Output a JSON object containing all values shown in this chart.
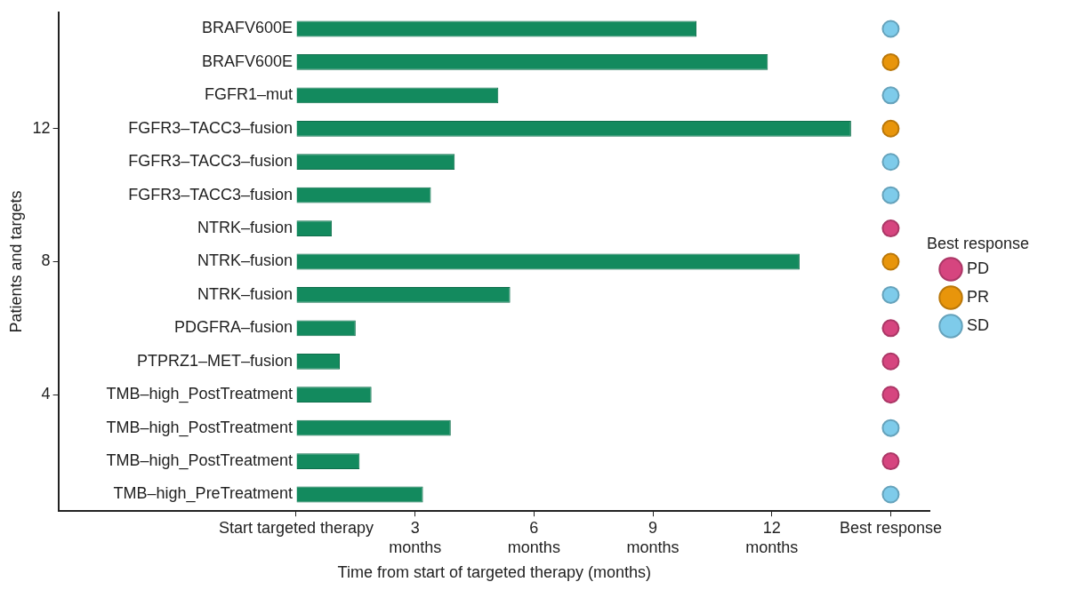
{
  "chart_data": {
    "type": "bar",
    "orientation": "horizontal",
    "xlabel": "Time from start of targeted therapy (months)",
    "y2label": "Patients and targets",
    "legend_title": "Best response",
    "legend": "right",
    "grid": false,
    "marker": "circle",
    "categories": [
      "BRAFV600E",
      "BRAFV600E",
      "FGFR1–mut",
      "FGFR3–TACC3–fusion",
      "FGFR3–TACC3–fusion",
      "FGFR3–TACC3–fusion",
      "NTRK–fusion",
      "NTRK–fusion",
      "NTRK–fusion",
      "PDGFRA–fusion",
      "PTPRZ1–MET–fusion",
      "TMB–high_PostTreatment",
      "TMB–high_PostTreatment",
      "TMB–high_PostTreatment",
      "TMB–high_PreTreatment"
    ],
    "xlim": [
      -6,
      16
    ],
    "xticks": [
      {
        "value": 0,
        "label": "Start targeted therapy"
      },
      {
        "value": 3,
        "label": "3\nmonths"
      },
      {
        "value": 6,
        "label": "6\nmonths"
      },
      {
        "value": 9,
        "label": "9\nmonths"
      },
      {
        "value": 12,
        "label": "12\nmonths"
      },
      {
        "value": 15,
        "label": "Best response"
      }
    ],
    "y2lim": [
      0.5,
      15.5
    ],
    "y2ticks": [
      4,
      8,
      12
    ],
    "series": [
      {
        "color": "#138a5e",
        "values": [
          10.1,
          11.9,
          5.1,
          14.0,
          4.0,
          3.4,
          0.9,
          12.7,
          5.4,
          1.5,
          1.1,
          1.9,
          3.9,
          1.6,
          3.2
        ]
      },
      {
        "type": "scatter",
        "name": "PD",
        "color": "#d6457f",
        "values": [
          null,
          null,
          null,
          null,
          null,
          null,
          15,
          null,
          null,
          15,
          15,
          15,
          null,
          15,
          null
        ]
      },
      {
        "type": "scatter",
        "name": "PR",
        "color": "#e8950b",
        "values": [
          null,
          15,
          null,
          15,
          null,
          null,
          null,
          15,
          null,
          null,
          null,
          null,
          null,
          null,
          null
        ]
      },
      {
        "type": "scatter",
        "name": "SD",
        "color": "#7ecbea",
        "values": [
          15,
          null,
          15,
          null,
          15,
          15,
          null,
          null,
          15,
          null,
          null,
          null,
          15,
          null,
          15
        ]
      }
    ]
  }
}
